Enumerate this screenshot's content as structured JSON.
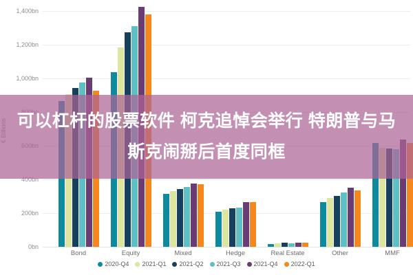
{
  "overlay": {
    "line1": "可以杠杆的股票软件 柯克追悼会举行 特朗普与马",
    "line2": "斯克闹掰后首度同框",
    "banner_color": "rgba(172,100,150,0.72)",
    "text_color": "#ffffff"
  },
  "chart_data": {
    "type": "bar",
    "title": "",
    "xlabel": "",
    "ylabel": "€ Billions",
    "unit": "bn",
    "grid": true,
    "legend_position": "bottom",
    "ylim": [
      0,
      1465
    ],
    "ytick_values": [
      0,
      200,
      400,
      600,
      800,
      1000,
      1200,
      1400
    ],
    "ytick_labels": [
      "0bn",
      "200bn",
      "400bn",
      "600bn",
      "800bn",
      "1,000bn",
      "1,200bn",
      "1,400bn"
    ],
    "categories": [
      "Bond",
      "Equity",
      "Mixed",
      "Hedge",
      "Real Estate",
      "Other",
      "MMF"
    ],
    "series": [
      {
        "name": "2020-Q4",
        "color": "#0d8a9e",
        "values": [
          865,
          1035,
          316,
          210,
          18,
          265,
          615
        ]
      },
      {
        "name": "2021-Q1",
        "color": "#dce69e",
        "values": [
          905,
          1185,
          330,
          222,
          20,
          290,
          588
        ]
      },
      {
        "name": "2021-Q2",
        "color": "#17405f",
        "values": [
          943,
          1275,
          344,
          228,
          24,
          302,
          583
        ]
      },
      {
        "name": "2021-Q3",
        "color": "#5fbfc6",
        "values": [
          976,
          1310,
          354,
          233,
          21,
          322,
          580
        ]
      },
      {
        "name": "2021-Q4",
        "color": "#6b3b76",
        "values": [
          1005,
          1425,
          374,
          266,
          25,
          350,
          636
        ]
      },
      {
        "name": "2022-Q1",
        "color": "#f6871f",
        "values": [
          926,
          1380,
          370,
          264,
          25,
          336,
          615
        ]
      }
    ]
  }
}
